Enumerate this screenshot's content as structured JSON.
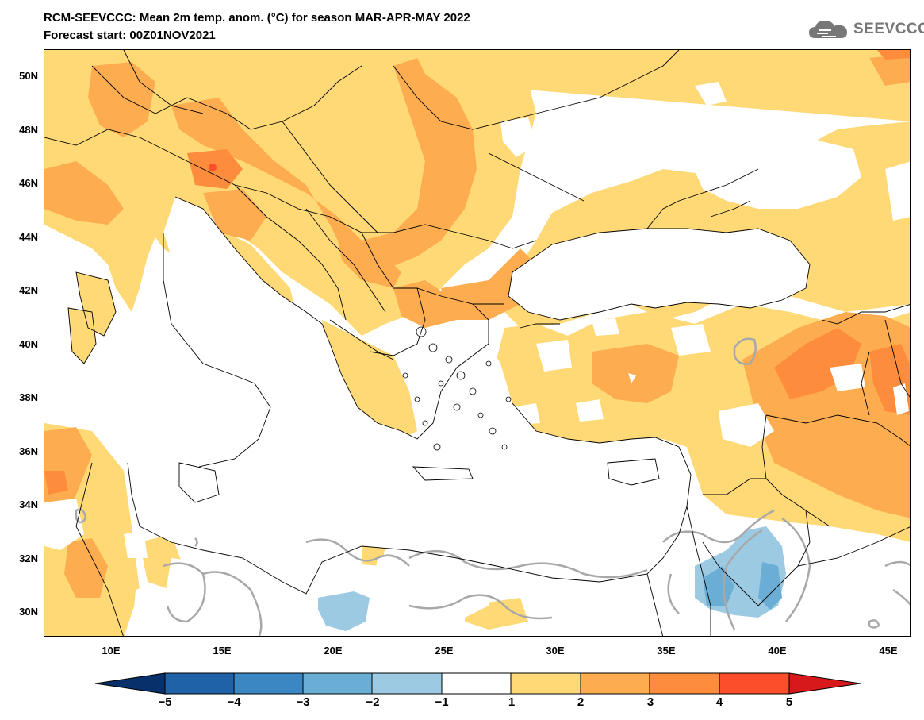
{
  "title": {
    "line1": "RCM-SEEVCCC: Mean 2m temp. anom. (°C) for season MAR-APR-MAY 2022",
    "line2": "Forecast start: 00Z01NOV2021"
  },
  "logo": {
    "text": "SEEVCCC",
    "icon": "cloud-logo-icon"
  },
  "axes": {
    "lat_labels": [
      "50N",
      "48N",
      "46N",
      "44N",
      "42N",
      "40N",
      "38N",
      "36N",
      "34N",
      "32N",
      "30N"
    ],
    "lon_labels": [
      "10E",
      "15E",
      "20E",
      "25E",
      "30E",
      "35E",
      "40E",
      "45E"
    ]
  },
  "colorbar": {
    "labels": [
      "−5",
      "−4",
      "−3",
      "−2",
      "−1",
      "1",
      "2",
      "3",
      "4",
      "5"
    ],
    "colors": [
      "#08306b",
      "#1f62a8",
      "#3a87c4",
      "#6aaed6",
      "#9ccae3",
      "#ffffff",
      "#fed976",
      "#fdad50",
      "#fd8c3c",
      "#fc4e2a",
      "#d7191c"
    ]
  },
  "colors": {
    "land_light": "#fed976",
    "land_warm": "#fdad50",
    "land_hot": "#fd8c3c",
    "cool": "#9ccae3",
    "cool_dark": "#6aaed6",
    "contour": "#999999"
  }
}
